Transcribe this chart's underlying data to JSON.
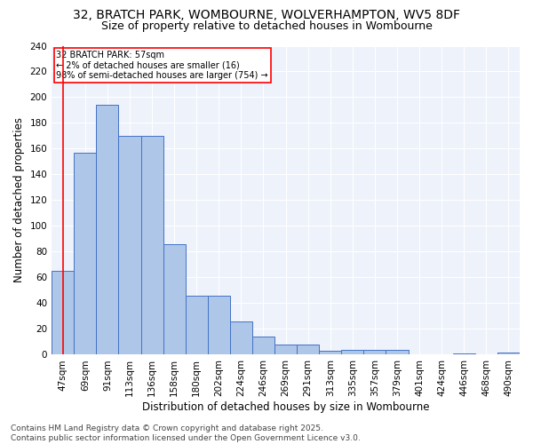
{
  "title_line1": "32, BRATCH PARK, WOMBOURNE, WOLVERHAMPTON, WV5 8DF",
  "title_line2": "Size of property relative to detached houses in Wombourne",
  "xlabel": "Distribution of detached houses by size in Wombourne",
  "ylabel": "Number of detached properties",
  "categories": [
    "47sqm",
    "69sqm",
    "91sqm",
    "113sqm",
    "136sqm",
    "158sqm",
    "180sqm",
    "202sqm",
    "224sqm",
    "246sqm",
    "269sqm",
    "291sqm",
    "313sqm",
    "335sqm",
    "357sqm",
    "379sqm",
    "401sqm",
    "424sqm",
    "446sqm",
    "468sqm",
    "490sqm"
  ],
  "values": [
    65,
    157,
    194,
    170,
    170,
    86,
    46,
    46,
    26,
    14,
    8,
    8,
    3,
    4,
    4,
    4,
    0,
    0,
    1,
    0,
    2
  ],
  "bar_color": "#aec6e8",
  "bar_edge_color": "#4472c4",
  "annotation_title": "32 BRATCH PARK: 57sqm",
  "annotation_line2": "← 2% of detached houses are smaller (16)",
  "annotation_line3": "98% of semi-detached houses are larger (754) →",
  "annotation_box_color": "white",
  "annotation_box_edge": "red",
  "footer_line1": "Contains HM Land Registry data © Crown copyright and database right 2025.",
  "footer_line2": "Contains public sector information licensed under the Open Government Licence v3.0.",
  "ylim": [
    0,
    240
  ],
  "yticks": [
    0,
    20,
    40,
    60,
    80,
    100,
    120,
    140,
    160,
    180,
    200,
    220,
    240
  ],
  "background_color": "#eef2fb",
  "grid_color": "white",
  "title_fontsize": 10,
  "subtitle_fontsize": 9,
  "axis_label_fontsize": 8.5,
  "tick_fontsize": 7.5,
  "footer_fontsize": 6.5
}
